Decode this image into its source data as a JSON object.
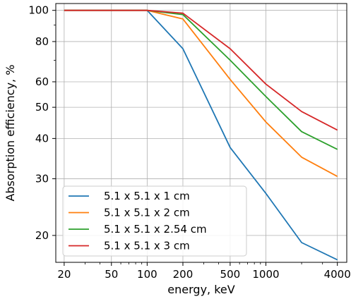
{
  "chart_data": {
    "type": "line",
    "title": "",
    "xlabel": "energy, keV",
    "ylabel": "Absorption efficiency, %",
    "x_scale": "log",
    "y_scale": "log",
    "xlim": [
      17,
      4800
    ],
    "ylim": [
      16.5,
      105
    ],
    "x_ticks": [
      20,
      50,
      100,
      200,
      500,
      1000,
      4000
    ],
    "x_tick_labels": [
      "20",
      "50",
      "100",
      "200",
      "500",
      "1000",
      "4000"
    ],
    "y_ticks": [
      20,
      30,
      40,
      50,
      60,
      80,
      100
    ],
    "y_tick_labels": [
      "20",
      "30",
      "40",
      "50",
      "60",
      "80",
      "100"
    ],
    "grid": true,
    "legend_position": "bottom-left",
    "x": [
      20,
      100,
      200,
      500,
      1000,
      2000,
      4000
    ],
    "series": [
      {
        "name": "5.1 x 5.1 x 1 cm",
        "color": "#1f77b4",
        "values": [
          100,
          100,
          76,
          37.5,
          27,
          19,
          16.8
        ]
      },
      {
        "name": "5.1 x 5.1 x 2 cm",
        "color": "#ff7f0e",
        "values": [
          100,
          100,
          94,
          61,
          45,
          35,
          30.5
        ]
      },
      {
        "name": "5.1 x 5.1 x 2.54 cm",
        "color": "#2ca02c",
        "values": [
          100,
          100,
          97,
          70,
          54,
          42,
          37
        ]
      },
      {
        "name": "5.1 x 5.1 x 3 cm",
        "color": "#d62728",
        "values": [
          100,
          100,
          98,
          76,
          59,
          48.5,
          42.5
        ]
      }
    ]
  }
}
